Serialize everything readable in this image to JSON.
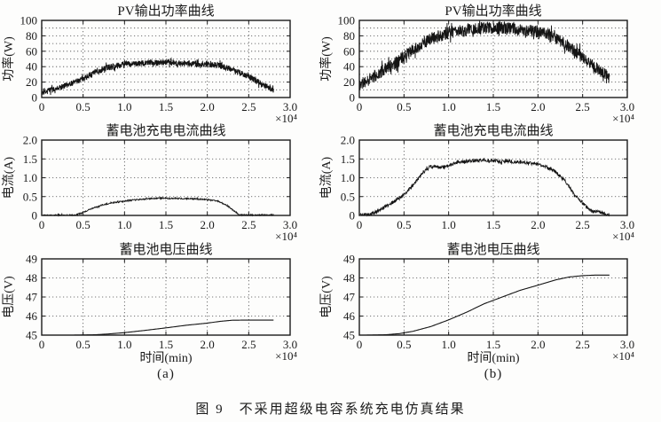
{
  "figure": {
    "caption": "图 9　不采用超级电容系统充电仿真结果",
    "column_labels": [
      "(a)",
      "(b)"
    ],
    "colors": {
      "background": "#fdfdfc",
      "axis": "#1a1a1a",
      "grid": "#4d4d4d",
      "line": "#141414"
    }
  },
  "chart_data": [
    {
      "id": "pv-power-a",
      "type": "line",
      "title": "PV输出功率曲线",
      "ylabel": "功率(W)",
      "xlabel": "",
      "x_unit": "×10⁴",
      "xlim": [
        0,
        3.0
      ],
      "ylim": [
        0,
        100
      ],
      "xticks": [
        0,
        0.5,
        1.0,
        1.5,
        2.0,
        2.5,
        3.0
      ],
      "xtick_labels": [
        "0",
        "0.5",
        "1.0",
        "1.5",
        "2.0",
        "2.5",
        "3.0"
      ],
      "yticks": [
        0,
        20,
        40,
        60,
        80,
        100
      ],
      "ytick_labels": [
        "0",
        "20",
        "40",
        "60",
        "80",
        "100"
      ],
      "yticks_minor": [
        10,
        30,
        50,
        70,
        90
      ],
      "grid": "on",
      "x_start": 0,
      "x_end": 2.8,
      "envelope": [
        [
          0,
          6
        ],
        [
          0.2,
          12
        ],
        [
          0.4,
          20
        ],
        [
          0.6,
          30
        ],
        [
          0.8,
          39
        ],
        [
          1.0,
          43
        ],
        [
          1.2,
          44
        ],
        [
          1.4,
          46
        ],
        [
          1.6,
          45
        ],
        [
          1.8,
          44
        ],
        [
          2.0,
          43
        ],
        [
          2.15,
          42
        ],
        [
          2.3,
          36
        ],
        [
          2.5,
          27
        ],
        [
          2.65,
          18
        ],
        [
          2.8,
          10
        ]
      ],
      "noise": 4,
      "points": 1100,
      "seed": 7
    },
    {
      "id": "pv-power-b",
      "type": "line",
      "title": "PV输出功率曲线",
      "ylabel": "功率(W)",
      "xlabel": "",
      "x_unit": "×10⁴",
      "xlim": [
        0,
        3.0
      ],
      "ylim": [
        0,
        100
      ],
      "xticks": [
        0,
        0.5,
        1.0,
        1.5,
        2.0,
        2.5,
        3.0
      ],
      "xtick_labels": [
        "0",
        "0.5",
        "1.0",
        "1.5",
        "2.0",
        "2.5",
        "3.0"
      ],
      "yticks": [
        0,
        20,
        40,
        60,
        80,
        100
      ],
      "ytick_labels": [
        "0",
        "20",
        "40",
        "60",
        "80",
        "100"
      ],
      "yticks_minor": [
        10,
        30,
        50,
        70,
        90
      ],
      "grid": "on",
      "x_start": 0,
      "x_end": 2.8,
      "envelope": [
        [
          0,
          16
        ],
        [
          0.2,
          30
        ],
        [
          0.4,
          45
        ],
        [
          0.6,
          62
        ],
        [
          0.8,
          76
        ],
        [
          1.0,
          84
        ],
        [
          1.2,
          87
        ],
        [
          1.4,
          90
        ],
        [
          1.6,
          90
        ],
        [
          1.8,
          88
        ],
        [
          2.0,
          85
        ],
        [
          2.15,
          81
        ],
        [
          2.3,
          70
        ],
        [
          2.5,
          52
        ],
        [
          2.65,
          38
        ],
        [
          2.8,
          26
        ]
      ],
      "noise": 8,
      "points": 1100,
      "seed": 11
    },
    {
      "id": "battery-current-a",
      "type": "line",
      "title": "蓄电池充电电流曲线",
      "ylabel": "电流(A)",
      "xlabel": "",
      "x_unit": "×10⁴",
      "xlim": [
        0,
        3.0
      ],
      "ylim": [
        0,
        2.0
      ],
      "xticks": [
        0,
        0.5,
        1.0,
        1.5,
        2.0,
        2.5,
        3.0
      ],
      "xtick_labels": [
        "0",
        "0.5",
        "1.0",
        "1.5",
        "2.0",
        "2.5",
        "3.0"
      ],
      "yticks": [
        0,
        0.5,
        1.0,
        1.5,
        2.0
      ],
      "ytick_labels": [
        "0",
        "0.5",
        "1.0",
        "1.5",
        "2.0"
      ],
      "yticks_minor": [],
      "grid": "on",
      "x_start": 0,
      "x_end": 2.8,
      "envelope": [
        [
          0,
          0.005
        ],
        [
          0.4,
          0.005
        ],
        [
          0.5,
          0.08
        ],
        [
          0.6,
          0.18
        ],
        [
          0.7,
          0.26
        ],
        [
          0.8,
          0.31
        ],
        [
          0.9,
          0.35
        ],
        [
          1.0,
          0.38
        ],
        [
          1.1,
          0.41
        ],
        [
          1.2,
          0.43
        ],
        [
          1.35,
          0.45
        ],
        [
          1.5,
          0.46
        ],
        [
          1.65,
          0.45
        ],
        [
          1.8,
          0.44
        ],
        [
          1.95,
          0.43
        ],
        [
          2.05,
          0.41
        ],
        [
          2.15,
          0.36
        ],
        [
          2.25,
          0.25
        ],
        [
          2.32,
          0.12
        ],
        [
          2.38,
          0.02
        ],
        [
          2.45,
          0.01
        ],
        [
          2.8,
          0.01
        ]
      ],
      "noise": 0.018,
      "points": 700,
      "seed": 3
    },
    {
      "id": "battery-current-b",
      "type": "line",
      "title": "蓄电池充电电流曲线",
      "ylabel": "电流(A)",
      "xlabel": "",
      "x_unit": "×10⁴",
      "xlim": [
        0,
        3.0
      ],
      "ylim": [
        0,
        2.0
      ],
      "xticks": [
        0,
        0.5,
        1.0,
        1.5,
        2.0,
        2.5,
        3.0
      ],
      "xtick_labels": [
        "0",
        "0.5",
        "1.0",
        "1.5",
        "2.0",
        "2.5",
        "3.0"
      ],
      "yticks": [
        0,
        0.5,
        1.0,
        1.5,
        2.0
      ],
      "ytick_labels": [
        "0",
        "0.5",
        "1.0",
        "1.5",
        "2.0"
      ],
      "yticks_minor": [],
      "grid": "on",
      "x_start": 0,
      "x_end": 2.8,
      "envelope": [
        [
          0,
          0.01
        ],
        [
          0.1,
          0.02
        ],
        [
          0.2,
          0.1
        ],
        [
          0.3,
          0.25
        ],
        [
          0.4,
          0.38
        ],
        [
          0.5,
          0.55
        ],
        [
          0.6,
          0.8
        ],
        [
          0.7,
          1.1
        ],
        [
          0.78,
          1.28
        ],
        [
          0.85,
          1.3
        ],
        [
          0.92,
          1.27
        ],
        [
          1.0,
          1.33
        ],
        [
          1.1,
          1.42
        ],
        [
          1.25,
          1.45
        ],
        [
          1.4,
          1.47
        ],
        [
          1.55,
          1.44
        ],
        [
          1.7,
          1.43
        ],
        [
          1.85,
          1.4
        ],
        [
          2.0,
          1.36
        ],
        [
          2.1,
          1.28
        ],
        [
          2.2,
          1.15
        ],
        [
          2.3,
          0.92
        ],
        [
          2.4,
          0.58
        ],
        [
          2.5,
          0.32
        ],
        [
          2.6,
          0.12
        ],
        [
          2.68,
          0.1
        ],
        [
          2.75,
          0.03
        ],
        [
          2.8,
          0.02
        ]
      ],
      "noise": 0.045,
      "points": 700,
      "seed": 5
    },
    {
      "id": "battery-voltage-a",
      "type": "line",
      "title": "蓄电池电压曲线",
      "ylabel": "电压(V)",
      "xlabel": "时间(min)",
      "x_unit": "×10⁴",
      "xlim": [
        0,
        3.0
      ],
      "ylim": [
        45,
        49
      ],
      "xticks": [
        0,
        0.5,
        1.0,
        1.5,
        2.0,
        2.5,
        3.0
      ],
      "xtick_labels": [
        "0",
        "0.5",
        "1.0",
        "1.5",
        "2.0",
        "2.5",
        "3.0"
      ],
      "yticks": [
        45,
        46,
        47,
        48,
        49
      ],
      "ytick_labels": [
        "45",
        "46",
        "47",
        "48",
        "49"
      ],
      "yticks_minor": [],
      "grid": "on",
      "x_start": 0.38,
      "x_end": 2.8,
      "envelope": [
        [
          0.38,
          45.0
        ],
        [
          0.65,
          45.02
        ],
        [
          0.8,
          45.06
        ],
        [
          1.0,
          45.13
        ],
        [
          1.25,
          45.25
        ],
        [
          1.5,
          45.38
        ],
        [
          1.75,
          45.52
        ],
        [
          2.0,
          45.63
        ],
        [
          2.15,
          45.72
        ],
        [
          2.3,
          45.78
        ],
        [
          2.5,
          45.79
        ],
        [
          2.8,
          45.79
        ]
      ],
      "noise": 0,
      "points": 260,
      "seed": 1
    },
    {
      "id": "battery-voltage-b",
      "type": "line",
      "title": "蓄电池电压曲线",
      "ylabel": "电压(V)",
      "xlabel": "时间(min)",
      "x_unit": "×10⁴",
      "xlim": [
        0,
        3.0
      ],
      "ylim": [
        45,
        49
      ],
      "xticks": [
        0,
        0.5,
        1.0,
        1.5,
        2.0,
        2.5,
        3.0
      ],
      "xtick_labels": [
        "0",
        "0.5",
        "1.0",
        "1.5",
        "2.0",
        "2.5",
        "3.0"
      ],
      "yticks": [
        45,
        46,
        47,
        48,
        49
      ],
      "ytick_labels": [
        "45",
        "46",
        "47",
        "48",
        "49"
      ],
      "yticks_minor": [],
      "grid": "on",
      "x_start": 0.08,
      "x_end": 2.8,
      "envelope": [
        [
          0.08,
          45.0
        ],
        [
          0.3,
          45.02
        ],
        [
          0.45,
          45.08
        ],
        [
          0.6,
          45.2
        ],
        [
          0.8,
          45.45
        ],
        [
          1.0,
          45.8
        ],
        [
          1.2,
          46.2
        ],
        [
          1.4,
          46.65
        ],
        [
          1.6,
          47.0
        ],
        [
          1.8,
          47.35
        ],
        [
          2.0,
          47.62
        ],
        [
          2.2,
          47.9
        ],
        [
          2.35,
          48.05
        ],
        [
          2.5,
          48.12
        ],
        [
          2.65,
          48.15
        ],
        [
          2.8,
          48.15
        ]
      ],
      "noise": 0,
      "points": 260,
      "seed": 2
    }
  ]
}
